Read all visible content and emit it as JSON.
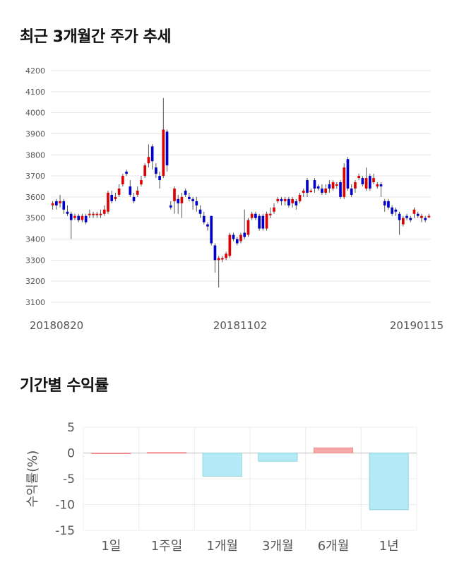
{
  "sections": {
    "price_title": "최근 3개월간 주가 추세",
    "returns_title": "기간별 수익률"
  },
  "colors": {
    "up": "#e00000",
    "down": "#0000cc",
    "positive_bar": "#f7a9a9",
    "negative_bar": "#b3eaf5"
  },
  "chart_data": [
    {
      "type": "candlestick",
      "title": "최근 3개월간 주가 추세",
      "yticks": [
        3100,
        3200,
        3300,
        3400,
        3500,
        3600,
        3700,
        3800,
        3900,
        4000,
        4100,
        4200
      ],
      "ylim": [
        3100,
        4200
      ],
      "xtick_labels": [
        "20180820",
        "20181102",
        "20190115"
      ],
      "grid": true,
      "candles": [
        [
          3560,
          3570,
          3540,
          3580
        ],
        [
          3580,
          3560,
          3540,
          3590
        ],
        [
          3570,
          3580,
          3550,
          3610
        ],
        [
          3580,
          3540,
          3520,
          3590
        ],
        [
          3530,
          3520,
          3510,
          3560
        ],
        [
          3520,
          3490,
          3400,
          3530
        ],
        [
          3500,
          3510,
          3490,
          3520
        ],
        [
          3510,
          3490,
          3480,
          3520
        ],
        [
          3490,
          3510,
          3480,
          3520
        ],
        [
          3510,
          3480,
          3470,
          3520
        ],
        [
          3520,
          3520,
          3500,
          3540
        ],
        [
          3520,
          3520,
          3500,
          3530
        ],
        [
          3520,
          3520,
          3500,
          3530
        ],
        [
          3520,
          3520,
          3500,
          3540
        ],
        [
          3520,
          3540,
          3510,
          3560
        ],
        [
          3530,
          3620,
          3520,
          3630
        ],
        [
          3610,
          3580,
          3570,
          3630
        ],
        [
          3590,
          3600,
          3580,
          3620
        ],
        [
          3610,
          3640,
          3600,
          3660
        ],
        [
          3660,
          3700,
          3650,
          3710
        ],
        [
          3720,
          3710,
          3700,
          3730
        ],
        [
          3650,
          3610,
          3600,
          3680
        ],
        [
          3600,
          3580,
          3570,
          3620
        ],
        [
          3610,
          3630,
          3600,
          3650
        ],
        [
          3660,
          3680,
          3650,
          3700
        ],
        [
          3700,
          3750,
          3690,
          3760
        ],
        [
          3760,
          3790,
          3740,
          3850
        ],
        [
          3840,
          3770,
          3730,
          3850
        ],
        [
          3740,
          3710,
          3690,
          3760
        ],
        [
          3700,
          3680,
          3640,
          3720
        ],
        [
          3700,
          3920,
          3690,
          4070
        ],
        [
          3910,
          3750,
          3720,
          3920
        ],
        [
          3560,
          3550,
          3540,
          3580
        ],
        [
          3580,
          3640,
          3520,
          3650
        ],
        [
          3590,
          3570,
          3520,
          3610
        ],
        [
          3570,
          3600,
          3500,
          3620
        ],
        [
          3630,
          3610,
          3600,
          3640
        ],
        [
          3600,
          3590,
          3580,
          3620
        ],
        [
          3590,
          3580,
          3540,
          3600
        ],
        [
          3580,
          3560,
          3530,
          3600
        ],
        [
          3540,
          3520,
          3500,
          3560
        ],
        [
          3510,
          3480,
          3470,
          3530
        ],
        [
          3470,
          3460,
          3440,
          3480
        ],
        [
          3510,
          3380,
          3370,
          3510
        ],
        [
          3370,
          3300,
          3240,
          3380
        ],
        [
          3300,
          3310,
          3170,
          3320
        ],
        [
          3310,
          3310,
          3290,
          3320
        ],
        [
          3310,
          3330,
          3300,
          3340
        ],
        [
          3320,
          3420,
          3310,
          3430
        ],
        [
          3420,
          3400,
          3390,
          3430
        ],
        [
          3400,
          3380,
          3370,
          3410
        ],
        [
          3390,
          3420,
          3380,
          3430
        ],
        [
          3430,
          3410,
          3400,
          3540
        ],
        [
          3420,
          3490,
          3410,
          3500
        ],
        [
          3500,
          3520,
          3490,
          3530
        ],
        [
          3520,
          3500,
          3490,
          3530
        ],
        [
          3510,
          3450,
          3440,
          3520
        ],
        [
          3510,
          3450,
          3440,
          3520
        ],
        [
          3450,
          3520,
          3440,
          3530
        ],
        [
          3520,
          3520,
          3500,
          3550
        ],
        [
          3530,
          3550,
          3520,
          3570
        ],
        [
          3580,
          3590,
          3570,
          3600
        ],
        [
          3590,
          3580,
          3560,
          3600
        ],
        [
          3580,
          3590,
          3560,
          3600
        ],
        [
          3590,
          3560,
          3550,
          3600
        ],
        [
          3570,
          3590,
          3550,
          3600
        ],
        [
          3580,
          3560,
          3540,
          3590
        ],
        [
          3580,
          3610,
          3570,
          3620
        ],
        [
          3620,
          3630,
          3600,
          3640
        ],
        [
          3680,
          3620,
          3600,
          3690
        ],
        [
          3630,
          3630,
          3620,
          3640
        ],
        [
          3680,
          3640,
          3620,
          3690
        ],
        [
          3650,
          3640,
          3630,
          3660
        ],
        [
          3640,
          3620,
          3610,
          3660
        ],
        [
          3620,
          3640,
          3610,
          3660
        ],
        [
          3660,
          3640,
          3620,
          3680
        ],
        [
          3640,
          3670,
          3630,
          3680
        ],
        [
          3660,
          3660,
          3640,
          3670
        ],
        [
          3670,
          3600,
          3590,
          3680
        ],
        [
          3600,
          3740,
          3590,
          3760
        ],
        [
          3780,
          3640,
          3630,
          3790
        ],
        [
          3640,
          3610,
          3600,
          3660
        ],
        [
          3640,
          3670,
          3620,
          3680
        ],
        [
          3690,
          3700,
          3680,
          3710
        ],
        [
          3690,
          3660,
          3650,
          3700
        ],
        [
          3640,
          3690,
          3630,
          3740
        ],
        [
          3700,
          3640,
          3630,
          3710
        ],
        [
          3670,
          3690,
          3660,
          3710
        ],
        [
          3650,
          3660,
          3640,
          3670
        ],
        [
          3660,
          3650,
          3600,
          3670
        ],
        [
          3580,
          3560,
          3530,
          3590
        ],
        [
          3580,
          3550,
          3540,
          3590
        ],
        [
          3550,
          3520,
          3510,
          3560
        ],
        [
          3540,
          3530,
          3510,
          3550
        ],
        [
          3520,
          3490,
          3420,
          3530
        ],
        [
          3470,
          3500,
          3460,
          3510
        ],
        [
          3510,
          3500,
          3490,
          3520
        ],
        [
          3500,
          3490,
          3480,
          3510
        ],
        [
          3520,
          3540,
          3500,
          3550
        ],
        [
          3520,
          3510,
          3500,
          3530
        ],
        [
          3500,
          3510,
          3480,
          3520
        ],
        [
          3500,
          3490,
          3480,
          3510
        ],
        [
          3510,
          3510,
          3500,
          3520
        ]
      ]
    },
    {
      "type": "bar",
      "title": "기간별 수익률",
      "ylabel": "수익률(%)",
      "categories": [
        "1일",
        "1주일",
        "1개월",
        "3개월",
        "6개월",
        "1년"
      ],
      "values": [
        0.0,
        0.1,
        -4.5,
        -1.6,
        1.0,
        -11.0
      ],
      "yticks": [
        5,
        0,
        -5,
        -10,
        -15
      ],
      "ylim": [
        -15,
        5
      ],
      "grid": true
    }
  ]
}
